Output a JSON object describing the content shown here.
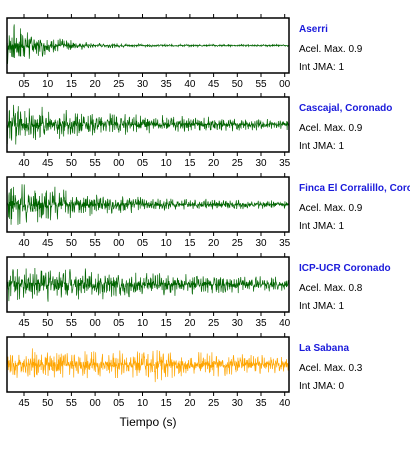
{
  "xlabel": "Tiempo (s)",
  "chart_data": [
    {
      "type": "line",
      "name": "Aserri",
      "accel_label": "Acel. Max. 0.9",
      "jma_label": "Int JMA: 1",
      "color": "#006400",
      "tick_labels": [
        "05",
        "10",
        "15",
        "20",
        "25",
        "30",
        "35",
        "40",
        "45",
        "50",
        "55",
        "00"
      ],
      "envelope": [
        [
          0,
          0.95
        ],
        [
          0.07,
          0.8
        ],
        [
          0.15,
          0.35
        ],
        [
          0.3,
          0.12
        ],
        [
          0.5,
          0.06
        ],
        [
          1,
          0.04
        ]
      ]
    },
    {
      "type": "line",
      "name": "Cascajal, Coronado",
      "accel_label": "Acel. Max. 0.9",
      "jma_label": "Int JMA: 1",
      "color": "#006400",
      "tick_labels": [
        "40",
        "45",
        "50",
        "55",
        "00",
        "05",
        "10",
        "15",
        "20",
        "25",
        "30",
        "35"
      ],
      "envelope": [
        [
          0,
          0.9
        ],
        [
          0.1,
          0.75
        ],
        [
          0.3,
          0.5
        ],
        [
          0.6,
          0.35
        ],
        [
          1,
          0.22
        ]
      ]
    },
    {
      "type": "line",
      "name": "Finca El Corralillo, Coronado",
      "accel_label": "Acel. Max. 0.9",
      "jma_label": "Int JMA: 1",
      "color": "#006400",
      "tick_labels": [
        "40",
        "45",
        "50",
        "55",
        "00",
        "05",
        "10",
        "15",
        "20",
        "25",
        "30",
        "35"
      ],
      "envelope": [
        [
          0,
          0.95
        ],
        [
          0.12,
          0.8
        ],
        [
          0.3,
          0.45
        ],
        [
          0.6,
          0.25
        ],
        [
          1,
          0.15
        ]
      ]
    },
    {
      "type": "line",
      "name": "ICP-UCR Coronado",
      "accel_label": "Acel. Max. 0.8",
      "jma_label": "Int JMA: 1",
      "color": "#006400",
      "tick_labels": [
        "45",
        "50",
        "55",
        "00",
        "05",
        "10",
        "15",
        "20",
        "25",
        "30",
        "35",
        "40"
      ],
      "envelope": [
        [
          0,
          0.7
        ],
        [
          0.15,
          0.75
        ],
        [
          0.4,
          0.55
        ],
        [
          0.7,
          0.4
        ],
        [
          1,
          0.3
        ]
      ]
    },
    {
      "type": "line",
      "name": "La Sabana",
      "accel_label": "Acel. Max. 0.3",
      "jma_label": "Int JMA: 0",
      "color": "#ffa500",
      "tick_labels": [
        "45",
        "50",
        "55",
        "00",
        "05",
        "10",
        "15",
        "20",
        "25",
        "30",
        "35",
        "40"
      ],
      "envelope": [
        [
          0,
          0.5
        ],
        [
          0.1,
          0.65
        ],
        [
          0.3,
          0.55
        ],
        [
          0.5,
          0.6
        ],
        [
          0.54,
          0.95
        ],
        [
          0.6,
          0.55
        ],
        [
          1,
          0.4
        ]
      ]
    }
  ]
}
